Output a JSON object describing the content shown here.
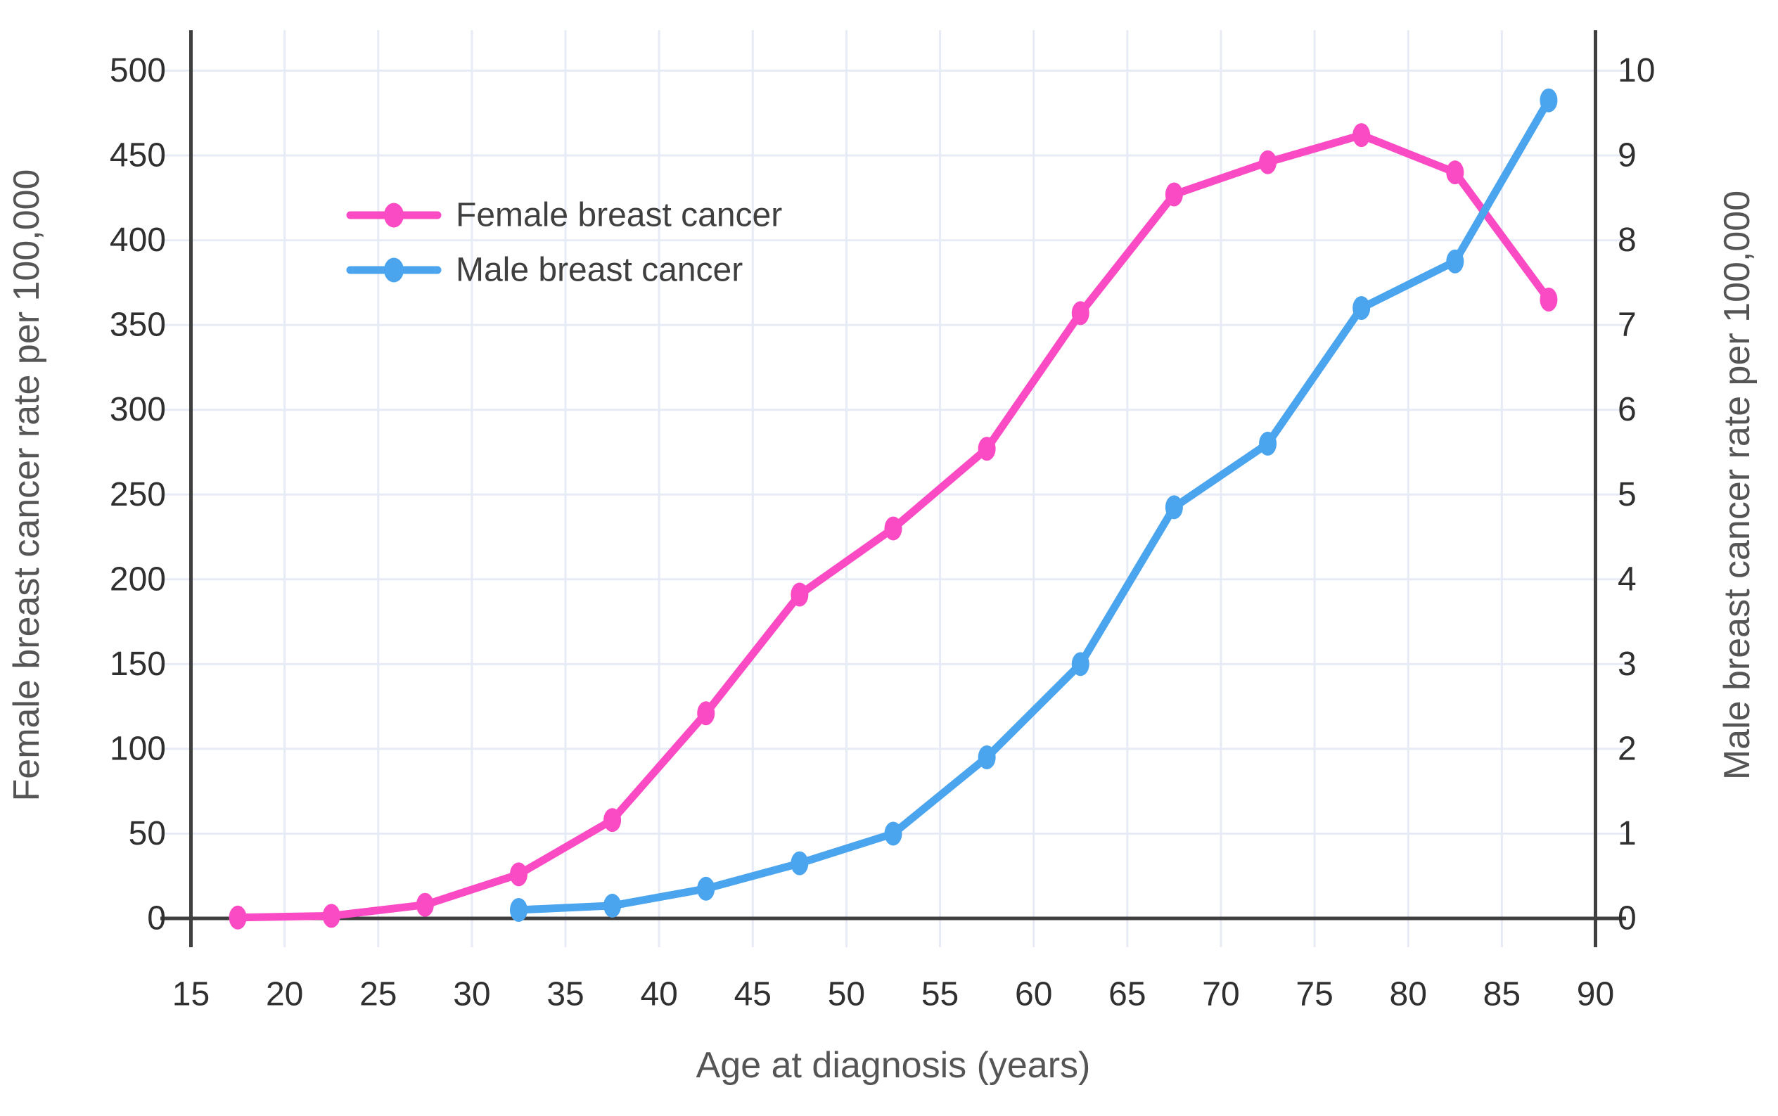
{
  "chart_data": {
    "type": "line",
    "title": "",
    "xlabel": "Age at diagnosis (years)",
    "ylabel_left": "Female breast cancer rate per 100,000",
    "ylabel_right": "Male breast cancer rate per 100,000",
    "x_axis": {
      "min": 15,
      "max": 90,
      "tick_step": 5,
      "ticks": [
        15,
        20,
        25,
        30,
        35,
        40,
        45,
        50,
        55,
        60,
        65,
        70,
        75,
        80,
        85,
        90
      ]
    },
    "y_axis_left": {
      "min": 0,
      "max": 500,
      "tick_step": 50,
      "ticks": [
        0,
        50,
        100,
        150,
        200,
        250,
        300,
        350,
        400,
        450,
        500
      ]
    },
    "y_axis_right": {
      "min": 0,
      "max": 10,
      "tick_step": 1,
      "ticks": [
        0,
        1,
        2,
        3,
        4,
        5,
        6,
        7,
        8,
        9,
        10
      ]
    },
    "grid": true,
    "legend": {
      "position": "inside-top-left",
      "entries": [
        "Female breast cancer",
        "Male breast cancer"
      ]
    },
    "series": [
      {
        "name": "Female breast cancer",
        "axis": "left",
        "color": "#fb4bc4",
        "x": [
          17.5,
          22.5,
          27.5,
          32.5,
          37.5,
          42.5,
          47.5,
          52.5,
          57.5,
          62.5,
          67.5,
          72.5,
          77.5,
          82.5,
          87.5
        ],
        "y": [
          0.5,
          1.5,
          8,
          26,
          58,
          121,
          191,
          230,
          277,
          357,
          427,
          446,
          462,
          440,
          365
        ]
      },
      {
        "name": "Male breast cancer",
        "axis": "right",
        "color": "#4aa4ee",
        "x": [
          32.5,
          37.5,
          42.5,
          47.5,
          52.5,
          57.5,
          62.5,
          67.5,
          72.5,
          77.5,
          82.5,
          87.5
        ],
        "y": [
          0.1,
          0.15,
          0.35,
          0.65,
          1,
          1.9,
          3,
          4.85,
          5.6,
          7.2,
          7.75,
          9.65
        ]
      }
    ],
    "colors": {
      "background": "#ffffff",
      "grid": "#e7ebf6",
      "axis": "#3f3f3f",
      "tick_text": "#303030",
      "title_text": "#555555",
      "legend_text": "#3f3f3f"
    }
  }
}
